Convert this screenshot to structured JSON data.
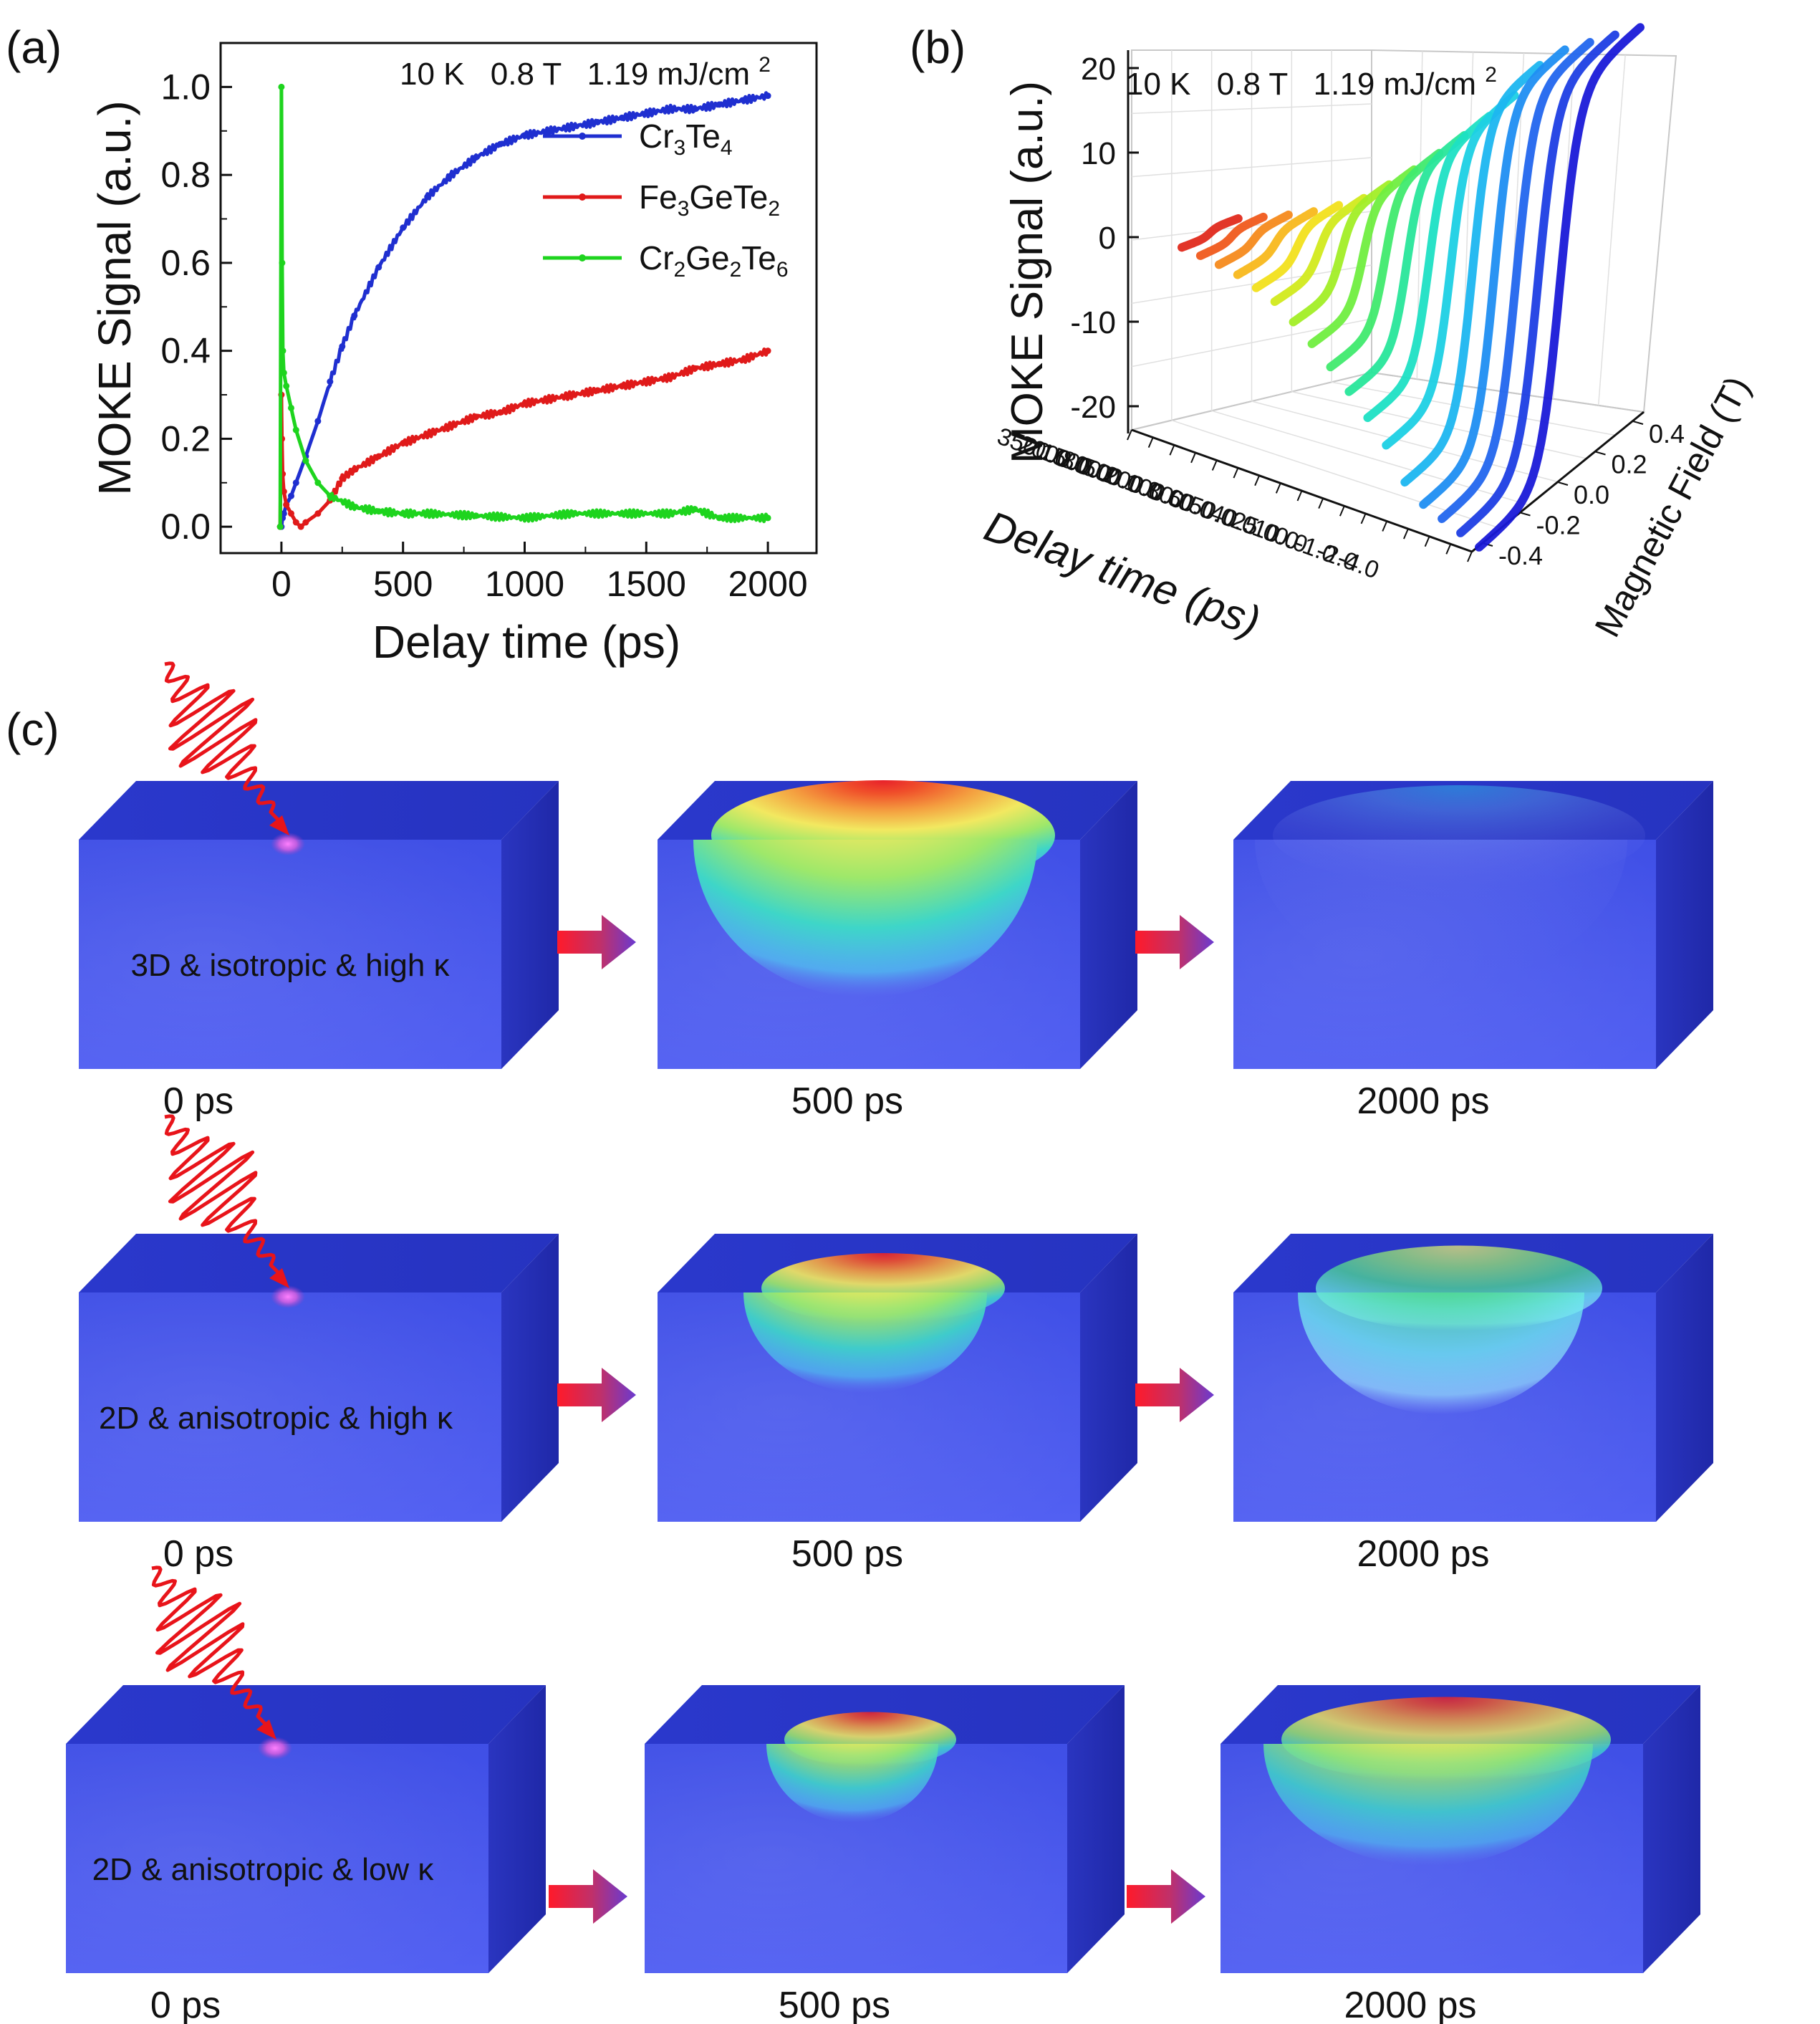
{
  "panels": {
    "a": {
      "label": "(a)"
    },
    "b": {
      "label": "(b)"
    },
    "c": {
      "label": "(c)"
    }
  },
  "chart_data": [
    {
      "id": "a",
      "type": "line",
      "annotation": {
        "temp": "10 K",
        "field": "0.8 T",
        "fluence": "1.19 mJ/cm",
        "fluence_sup": "2"
      },
      "xlabel": "Delay time (ps)",
      "ylabel": "MOKE Signal (a.u.)",
      "xlim": [
        -250,
        2200
      ],
      "ylim": [
        -0.06,
        1.1
      ],
      "xticks": [
        0,
        500,
        1000,
        1500,
        2000
      ],
      "yticks": [
        0.0,
        0.2,
        0.4,
        0.6,
        0.8,
        1.0
      ],
      "ytick_labels": [
        "0.0",
        "0.2",
        "0.4",
        "0.6",
        "0.8",
        "1.0"
      ],
      "legend_position": "upper-right",
      "series": [
        {
          "name": "Cr3Te4",
          "name_parts": [
            "Cr",
            "3",
            "Te",
            "4",
            "",
            ""
          ],
          "color": "#1f2fd0",
          "x": [
            -5,
            0,
            5,
            10,
            20,
            40,
            60,
            100,
            150,
            200,
            250,
            300,
            400,
            500,
            600,
            700,
            800,
            900,
            1000,
            1100,
            1200,
            1300,
            1400,
            1500,
            1600,
            1700,
            1800,
            1900,
            2000
          ],
          "y": [
            0.0,
            0.0,
            0.02,
            0.03,
            0.05,
            0.07,
            0.1,
            0.16,
            0.24,
            0.33,
            0.41,
            0.48,
            0.59,
            0.68,
            0.75,
            0.8,
            0.84,
            0.87,
            0.89,
            0.9,
            0.91,
            0.92,
            0.93,
            0.94,
            0.95,
            0.95,
            0.96,
            0.97,
            0.98
          ]
        },
        {
          "name": "Fe3GeTe2",
          "name_parts": [
            "Fe",
            "3",
            "GeTe",
            "2",
            "",
            ""
          ],
          "color": "#e01a1a",
          "x": [
            -5,
            0,
            2,
            5,
            10,
            20,
            40,
            60,
            80,
            100,
            150,
            200,
            250,
            300,
            400,
            500,
            600,
            700,
            800,
            900,
            1000,
            1100,
            1200,
            1300,
            1400,
            1500,
            1600,
            1700,
            1800,
            1900,
            2000
          ],
          "y": [
            0.0,
            0.3,
            0.2,
            0.12,
            0.08,
            0.05,
            0.03,
            0.01,
            0.0,
            0.01,
            0.03,
            0.06,
            0.11,
            0.13,
            0.16,
            0.19,
            0.21,
            0.23,
            0.25,
            0.26,
            0.28,
            0.29,
            0.3,
            0.31,
            0.32,
            0.33,
            0.34,
            0.36,
            0.37,
            0.38,
            0.4
          ]
        },
        {
          "name": "Cr2Ge2Te6",
          "name_parts": [
            "Cr",
            "2",
            "Ge",
            "2",
            "Te",
            "6"
          ],
          "color": "#1ed41e",
          "x": [
            -5,
            0,
            3,
            6,
            10,
            20,
            40,
            60,
            100,
            150,
            200,
            300,
            400,
            500,
            600,
            800,
            1000,
            1200,
            1400,
            1600,
            1700,
            1800,
            2000
          ],
          "y": [
            0.0,
            1.0,
            0.6,
            0.4,
            0.35,
            0.32,
            0.27,
            0.22,
            0.15,
            0.1,
            0.07,
            0.045,
            0.035,
            0.03,
            0.03,
            0.025,
            0.02,
            0.03,
            0.03,
            0.03,
            0.04,
            0.02,
            0.02
          ]
        }
      ]
    },
    {
      "id": "b",
      "type": "line",
      "annotation": {
        "temp": "10 K",
        "field": "0.8 T",
        "fluence": "1.19 mJ/cm",
        "fluence_sup": "2"
      },
      "zlabel": "MOKE Signal (a.u.)",
      "zticks": [
        "20",
        "10",
        "0",
        "-10",
        "-20"
      ],
      "xlabel": "Delay time (ps)",
      "xtick_labels": [
        "3500.0",
        "2000.0",
        "1500.0",
        "800.0",
        "500.0",
        "200.0",
        "100.0",
        "80.0",
        "60.0",
        "50.0",
        "40.0",
        "25.0",
        "10.0",
        "0.0",
        "-1.0",
        "-2.0",
        "-4.0"
      ],
      "ylabel": "Magnetic Field (T)",
      "ytick_labels": [
        "0.4",
        "0.2",
        "0.0",
        "-0.2",
        "-0.4"
      ],
      "field_range": [
        -0.45,
        0.45
      ],
      "signal_range": [
        -20,
        20
      ],
      "curves": [
        {
          "delay": "-4.0",
          "color": "#1a1ad8",
          "saturation": 20
        },
        {
          "delay": "-2.0",
          "color": "#1e3ee4",
          "saturation": 20
        },
        {
          "delay": "-1.0",
          "color": "#2266ee",
          "saturation": 20
        },
        {
          "delay": "0.0",
          "color": "#1f8ef2",
          "saturation": 20
        },
        {
          "delay": "10.0",
          "color": "#1cb6f0",
          "saturation": 19
        },
        {
          "delay": "25.0",
          "color": "#1cd0e4",
          "saturation": 16
        },
        {
          "delay": "40.0",
          "color": "#1ee0c4",
          "saturation": 14
        },
        {
          "delay": "50.0",
          "color": "#28e69a",
          "saturation": 12
        },
        {
          "delay": "60.0",
          "color": "#40ea6e",
          "saturation": 10
        },
        {
          "delay": "80.0",
          "color": "#70ee40",
          "saturation": 8
        },
        {
          "delay": "100.0",
          "color": "#a2ee26",
          "saturation": 6
        },
        {
          "delay": "200.0",
          "color": "#d2ea1c",
          "saturation": 4
        },
        {
          "delay": "500.0",
          "color": "#f2e01c",
          "saturation": 3
        },
        {
          "delay": "800.0",
          "color": "#f8b81c",
          "saturation": 2
        },
        {
          "delay": "1500.0",
          "color": "#f68a1c",
          "saturation": 1.5
        },
        {
          "delay": "2000.0",
          "color": "#f05a1c",
          "saturation": 1.2
        },
        {
          "delay": "3500.0",
          "color": "#e02a1c",
          "saturation": 1
        }
      ]
    }
  ],
  "schematic": {
    "rows": [
      {
        "label": "3D & isotropic & high κ",
        "times": [
          "0 ps",
          "500 ps",
          "2000 ps"
        ],
        "states": [
          {
            "kind": "spot"
          },
          {
            "kind": "heat",
            "rx": 240,
            "ry": 220,
            "intensity": 1.0
          },
          {
            "kind": "faint",
            "rx": 260,
            "ry": 200,
            "intensity": 0.35
          }
        ]
      },
      {
        "label": "2D & anisotropic & high κ",
        "times": [
          "0 ps",
          "500 ps",
          "2000 ps"
        ],
        "states": [
          {
            "kind": "spot"
          },
          {
            "kind": "heat",
            "rx": 170,
            "ry": 140,
            "intensity": 0.9
          },
          {
            "kind": "heat-cool",
            "rx": 200,
            "ry": 170,
            "intensity": 0.7
          }
        ]
      },
      {
        "label": "2D & anisotropic & low κ",
        "times": [
          "0 ps",
          "500 ps",
          "2000 ps"
        ],
        "states": [
          {
            "kind": "spot"
          },
          {
            "kind": "heat",
            "rx": 120,
            "ry": 110,
            "intensity": 0.85
          },
          {
            "kind": "heat",
            "rx": 230,
            "ry": 170,
            "intensity": 0.8
          }
        ]
      }
    ]
  }
}
